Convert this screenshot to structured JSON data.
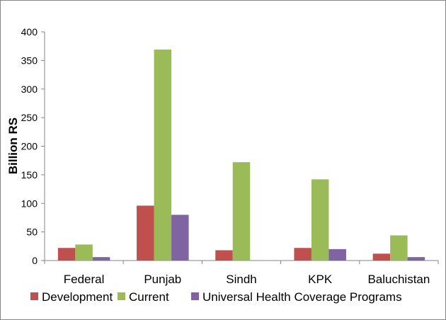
{
  "chart_data": {
    "type": "bar",
    "ylabel": "Billion RS",
    "xlabel": "",
    "ylim": [
      0,
      400
    ],
    "yticks": [
      0,
      50,
      100,
      150,
      200,
      250,
      300,
      350,
      400
    ],
    "categories": [
      "Federal",
      "Punjab",
      "Sindh",
      "KPK",
      "Baluchistan"
    ],
    "series": [
      {
        "name": "Development",
        "color": "#c0504d",
        "values": [
          22,
          96,
          18,
          22,
          12
        ]
      },
      {
        "name": "Current",
        "color": "#9bbb59",
        "values": [
          28,
          369,
          172,
          142,
          44
        ]
      },
      {
        "name": "Universal Health Coverage Programs",
        "color": "#8064a2",
        "values": [
          6,
          80,
          0,
          20,
          6
        ]
      }
    ],
    "grid": false,
    "legend": "bottom"
  }
}
